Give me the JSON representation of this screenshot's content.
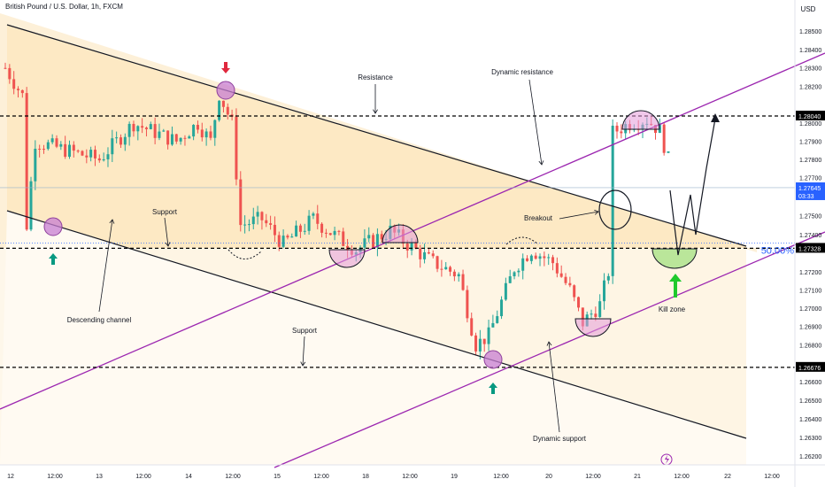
{
  "header": {
    "title": "British Pound / U.S. Dollar, 1h, FXCM",
    "currency": "USD"
  },
  "chart_data": {
    "type": "candlestick",
    "price_axis": {
      "range": [
        1.2615,
        1.286
      ],
      "ticks": [
        "1.28500",
        "1.28400",
        "1.28300",
        "1.28200",
        "1.28000",
        "1.27900",
        "1.27800",
        "1.27700",
        "1.27500",
        "1.27400",
        "1.27200",
        "1.27100",
        "1.27000",
        "1.26900",
        "1.26800",
        "1.26600",
        "1.26500",
        "1.26400",
        "1.26300",
        "1.26200"
      ]
    },
    "time_axis": {
      "ticks": [
        "12",
        "12:00",
        "13",
        "12:00",
        "14",
        "12:00",
        "15",
        "12:00",
        "18",
        "12:00",
        "19",
        "12:00",
        "20",
        "12:00",
        "21",
        "12:00",
        "22",
        "12:00"
      ]
    },
    "levels": [
      {
        "id": "resistance",
        "price": 1.2804,
        "tag": "1.28040"
      },
      {
        "id": "support",
        "price": 1.27328,
        "tag": "1.27328"
      },
      {
        "id": "support-low",
        "price": 1.26676,
        "tag": "1.26676"
      }
    ],
    "current_price": {
      "price": 1.27645,
      "tag": "1.27645",
      "countdown": "03:33"
    },
    "fib_label": "50.00%",
    "annotations": {
      "resistance": "Resistance",
      "dynamic_resistance": "Dynamic resistance",
      "support_upper": "Support",
      "support_lower": "Support",
      "descending_channel": "Descending channel",
      "breakout": "Breakout",
      "kill_zone": "Kill zone",
      "dynamic_support": "Dynamic support"
    },
    "colors": {
      "up": "#26a69a",
      "down": "#ef5350",
      "channel_fill": "#fde9c4",
      "dynamic_line": "#9c27b0",
      "level_line": "#000000"
    },
    "path_waypoints": [
      [
        1.283,
        0
      ],
      [
        1.2815,
        4
      ],
      [
        1.2745,
        5
      ],
      [
        1.279,
        7
      ],
      [
        1.278,
        22
      ],
      [
        1.28,
        30
      ],
      [
        1.279,
        40
      ],
      [
        1.28,
        45
      ],
      [
        1.279,
        48
      ],
      [
        1.2816,
        50
      ],
      [
        1.28,
        53
      ],
      [
        1.2745,
        55
      ],
      [
        1.2748,
        60
      ],
      [
        1.2735,
        65
      ],
      [
        1.2748,
        72
      ],
      [
        1.2738,
        78
      ],
      [
        1.2732,
        82
      ],
      [
        1.2742,
        90
      ],
      [
        1.2735,
        94
      ],
      [
        1.2725,
        100
      ],
      [
        1.2718,
        106
      ],
      [
        1.268,
        110
      ],
      [
        1.2685,
        113
      ],
      [
        1.2722,
        119
      ],
      [
        1.2732,
        123
      ],
      [
        1.2725,
        128
      ],
      [
        1.271,
        132
      ],
      [
        1.2692,
        135
      ],
      [
        1.2702,
        139
      ],
      [
        1.272,
        141
      ],
      [
        1.2795,
        142
      ],
      [
        1.28,
        146
      ],
      [
        1.2802,
        150
      ],
      [
        1.2796,
        153
      ],
      [
        1.278,
        155
      ]
    ]
  }
}
